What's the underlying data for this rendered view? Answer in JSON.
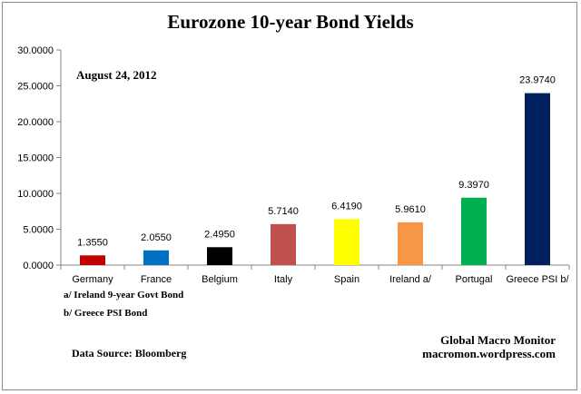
{
  "chart_data": {
    "type": "bar",
    "title": "Eurozone 10-year Bond Yields",
    "date_label": "August 24, 2012",
    "categories": [
      "Germany",
      "France",
      "Belgium",
      "Italy",
      "Spain",
      "Ireland  a/",
      "Portugal",
      "Greece PSI b/"
    ],
    "values": [
      1.355,
      2.055,
      2.495,
      5.714,
      6.419,
      5.961,
      9.397,
      23.974
    ],
    "value_labels": [
      "1.3550",
      "2.0550",
      "2.4950",
      "5.7140",
      "6.4190",
      "5.9610",
      "9.3970",
      "23.9740"
    ],
    "colors": [
      "#c00000",
      "#0070c0",
      "#000000",
      "#c0504d",
      "#ffff00",
      "#f79646",
      "#00b050",
      "#002060"
    ],
    "ylim": [
      0,
      30
    ],
    "yticks": [
      0,
      5,
      10,
      15,
      20,
      25,
      30
    ],
    "ytick_labels": [
      "0.0000",
      "5.0000",
      "10.0000",
      "15.0000",
      "20.0000",
      "25.0000",
      "30.0000"
    ],
    "grid": false,
    "xlabel": "",
    "ylabel": ""
  },
  "footnotes": {
    "a": "a/  Ireland 9-year Govt Bond",
    "b": "b/  Greece PSI Bond"
  },
  "source": "Data Source:  Bloomberg",
  "credit": {
    "line1": "Global Macro Monitor",
    "line2": "macromon.wordpress.com"
  }
}
